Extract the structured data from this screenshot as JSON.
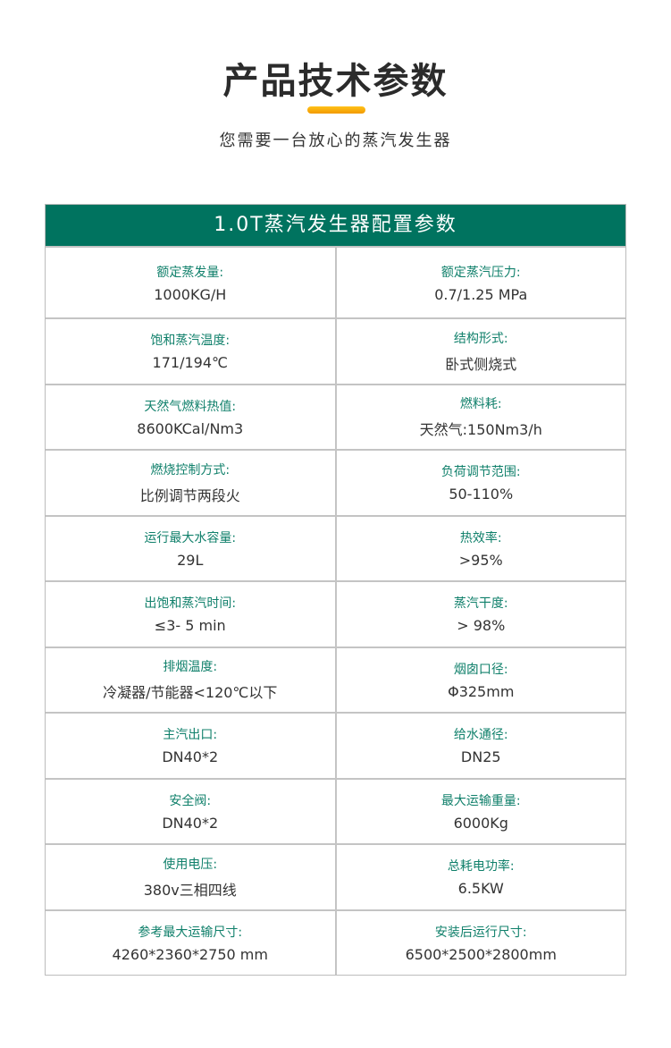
{
  "header": {
    "title": "产品技术参数",
    "subtitle": "您需要一台放心的蒸汽发生器",
    "accent_color": "#f5a800"
  },
  "table": {
    "title": "1.0T蒸汽发生器配置参数",
    "header_color": "#00735f",
    "rows": [
      [
        {
          "label": "额定蒸发量:",
          "value": "1000KG/H"
        },
        {
          "label": "额定蒸汽压力:",
          "value": "0.7/1.25 MPa"
        }
      ],
      [
        {
          "label": "饱和蒸汽温度:",
          "value": "171/194℃"
        },
        {
          "label": "结构形式:",
          "value": "卧式侧烧式"
        }
      ],
      [
        {
          "label": "天然气燃料热值:",
          "value": "8600KCal/Nm3"
        },
        {
          "label": "燃料耗:",
          "value": "天然气:150Nm3/h"
        }
      ],
      [
        {
          "label": "燃烧控制方式:",
          "value": "比例调节两段火"
        },
        {
          "label": "负荷调节范围:",
          "value": "50-110%"
        }
      ],
      [
        {
          "label": "运行最大水容量:",
          "value": "29L"
        },
        {
          "label": "热效率:",
          "value": ">95%"
        }
      ],
      [
        {
          "label": "出饱和蒸汽时间:",
          "value": "≤3- 5 min"
        },
        {
          "label": "蒸汽干度:",
          "value": "> 98%"
        }
      ],
      [
        {
          "label": "排烟温度:",
          "value": "冷凝器/节能器<120℃以下"
        },
        {
          "label": "烟囱口径:",
          "value": "Φ325mm"
        }
      ],
      [
        {
          "label": "主汽出口:",
          "value": "DN40*2"
        },
        {
          "label": "给水通径:",
          "value": "DN25"
        }
      ],
      [
        {
          "label": "安全阀:",
          "value": "DN40*2"
        },
        {
          "label": "最大运输重量:",
          "value": "6000Kg"
        }
      ],
      [
        {
          "label": "使用电压:",
          "value": "380v三相四线"
        },
        {
          "label": "总耗电功率:",
          "value": "6.5KW"
        }
      ],
      [
        {
          "label": "参考最大运输尺寸:",
          "value": "4260*2360*2750 mm"
        },
        {
          "label": "安装后运行尺寸:",
          "value": "6500*2500*2800mm"
        }
      ]
    ]
  }
}
